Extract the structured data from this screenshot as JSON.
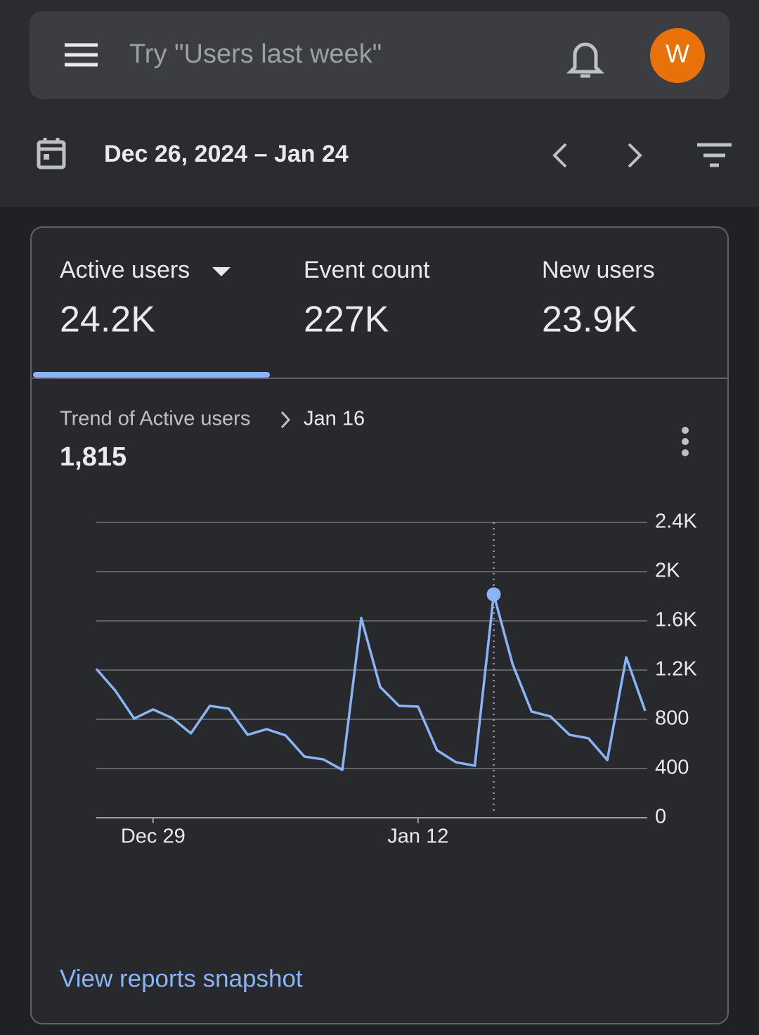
{
  "search": {
    "placeholder": "Try \"Users last week\"",
    "avatar": "W"
  },
  "date_range": "Dec 26, 2024 – Jan 24",
  "metrics": [
    {
      "label": "Active users",
      "value": "24.2K"
    },
    {
      "label": "Event count",
      "value": "227K"
    },
    {
      "label": "New users",
      "value": "23.9K"
    }
  ],
  "chart_data": {
    "type": "line",
    "title": "Trend of Active users",
    "highlight": {
      "x_label": "Jan 16",
      "value": 1815,
      "label": "1,815"
    },
    "categories": [
      null,
      null,
      null,
      "Dec 29",
      null,
      null,
      null,
      null,
      null,
      null,
      null,
      null,
      null,
      null,
      null,
      null,
      null,
      "Jan 12",
      null,
      null,
      null,
      null,
      null,
      null,
      null,
      null,
      null,
      null,
      null,
      null
    ],
    "series": [
      {
        "name": "Active users",
        "color": "#8ab4f8",
        "values": [
          1210,
          1034,
          806,
          880,
          811,
          686,
          909,
          886,
          674,
          720,
          669,
          497,
          474,
          389,
          1623,
          1063,
          909,
          903,
          549,
          451,
          423,
          1815,
          1246,
          863,
          823,
          674,
          646,
          469,
          1303,
          869
        ]
      }
    ],
    "ylim": [
      0,
      2400
    ],
    "yticks": [
      0,
      400,
      800,
      {
        "value": 1200,
        "label": "1.2K"
      },
      {
        "value": 1600,
        "label": "1.6K"
      },
      {
        "value": 2000,
        "label": "2K"
      },
      {
        "value": 2400,
        "label": "2.4K"
      }
    ],
    "grid": true
  },
  "link": "View reports snapshot"
}
